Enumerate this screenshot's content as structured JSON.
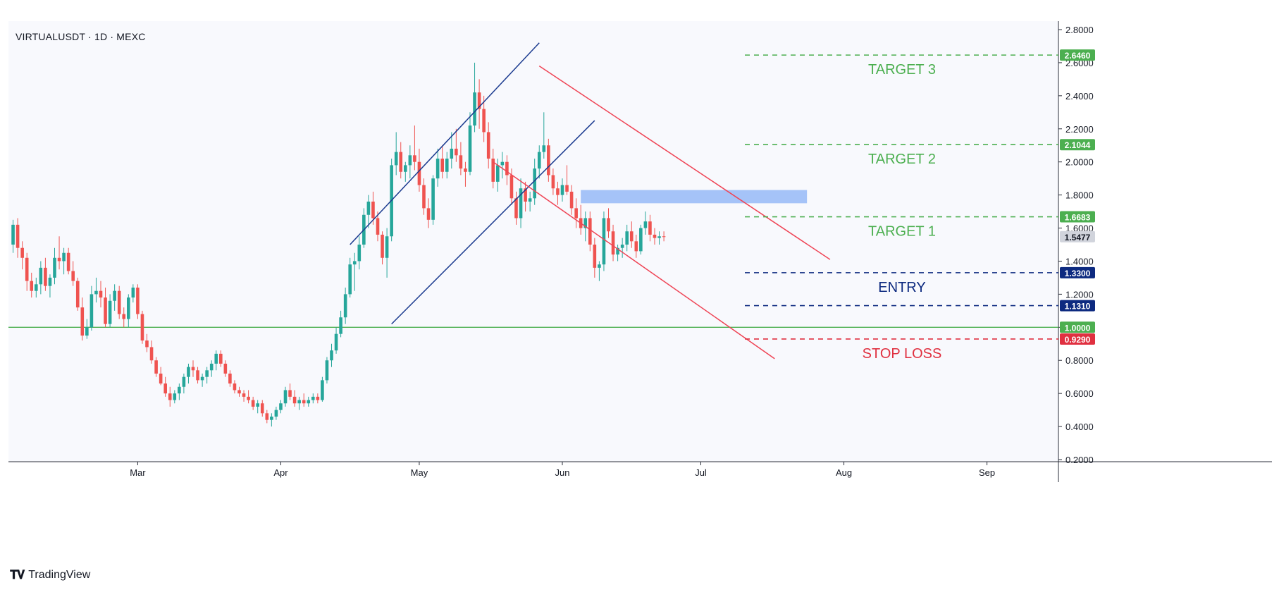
{
  "header": {
    "symbol": "VIRTUALUSDT · 1D · MEXC"
  },
  "branding": {
    "logo_icon": "tradingview-logo-icon",
    "name": "TradingView"
  },
  "colors": {
    "up": "#26a69a",
    "down": "#ef5350",
    "channel": "#1a3a8f",
    "wedge": "#ef4455",
    "target": "#4caf50",
    "entry": "#0d2a80",
    "stop": "#e03040",
    "zone": "#8ab0f5",
    "support": "#4caf50",
    "last": "#d1d4dc"
  },
  "chart_data": {
    "type": "candlestick",
    "title": "",
    "x_ticks": [
      "Mar",
      "Apr",
      "May",
      "Jun",
      "Jul",
      "Aug",
      "Sep"
    ],
    "y_ticks": [
      "2.8000",
      "2.6000",
      "2.4000",
      "2.2000",
      "2.0000",
      "1.8000",
      "1.6000",
      "1.4000",
      "1.2000",
      "1.0000",
      "0.8000",
      "0.6000",
      "0.4000",
      "0.2000"
    ],
    "ylim": [
      0.2,
      2.8
    ],
    "dates": [
      "02-01",
      "09-21"
    ],
    "ohlc_seed": [
      [
        1.5,
        1.65,
        1.45,
        1.62
      ],
      [
        1.62,
        1.66,
        1.42,
        1.48
      ],
      [
        1.48,
        1.52,
        1.35,
        1.42
      ],
      [
        1.42,
        1.45,
        1.22,
        1.28
      ],
      [
        1.28,
        1.33,
        1.18,
        1.22
      ],
      [
        1.22,
        1.3,
        1.18,
        1.26
      ],
      [
        1.26,
        1.4,
        1.2,
        1.36
      ],
      [
        1.36,
        1.42,
        1.22,
        1.25
      ],
      [
        1.25,
        1.32,
        1.18,
        1.3
      ],
      [
        1.3,
        1.48,
        1.26,
        1.42
      ],
      [
        1.42,
        1.55,
        1.35,
        1.4
      ],
      [
        1.4,
        1.48,
        1.32,
        1.45
      ],
      [
        1.45,
        1.48,
        1.32,
        1.34
      ],
      [
        1.34,
        1.4,
        1.25,
        1.28
      ],
      [
        1.28,
        1.3,
        1.1,
        1.12
      ],
      [
        1.12,
        1.18,
        0.92,
        0.95
      ],
      [
        0.95,
        1.05,
        0.93,
        1.0
      ],
      [
        1.0,
        1.25,
        0.98,
        1.2
      ],
      [
        1.2,
        1.3,
        1.15,
        1.22
      ],
      [
        1.22,
        1.28,
        1.12,
        1.18
      ],
      [
        1.18,
        1.24,
        1.0,
        1.02
      ],
      [
        1.02,
        1.2,
        1.0,
        1.16
      ],
      [
        1.16,
        1.26,
        1.1,
        1.22
      ],
      [
        1.22,
        1.25,
        1.05,
        1.08
      ],
      [
        1.08,
        1.12,
        1.0,
        1.05
      ],
      [
        1.05,
        1.2,
        1.0,
        1.18
      ],
      [
        1.18,
        1.26,
        1.15,
        1.24
      ],
      [
        1.24,
        1.26,
        1.05,
        1.08
      ],
      [
        1.08,
        1.1,
        0.9,
        0.92
      ],
      [
        0.92,
        0.96,
        0.85,
        0.88
      ],
      [
        0.88,
        0.92,
        0.78,
        0.8
      ],
      [
        0.8,
        0.82,
        0.7,
        0.72
      ],
      [
        0.72,
        0.76,
        0.65,
        0.66
      ],
      [
        0.66,
        0.7,
        0.58,
        0.6
      ],
      [
        0.6,
        0.64,
        0.52,
        0.56
      ],
      [
        0.56,
        0.62,
        0.54,
        0.6
      ],
      [
        0.6,
        0.66,
        0.56,
        0.64
      ],
      [
        0.64,
        0.72,
        0.6,
        0.7
      ],
      [
        0.7,
        0.78,
        0.66,
        0.76
      ],
      [
        0.76,
        0.8,
        0.7,
        0.74
      ],
      [
        0.74,
        0.76,
        0.66,
        0.68
      ],
      [
        0.68,
        0.72,
        0.64,
        0.7
      ],
      [
        0.7,
        0.76,
        0.66,
        0.74
      ],
      [
        0.74,
        0.8,
        0.7,
        0.78
      ],
      [
        0.78,
        0.86,
        0.74,
        0.84
      ],
      [
        0.84,
        0.86,
        0.76,
        0.78
      ],
      [
        0.78,
        0.8,
        0.7,
        0.72
      ],
      [
        0.72,
        0.74,
        0.64,
        0.66
      ],
      [
        0.66,
        0.68,
        0.6,
        0.62
      ],
      [
        0.62,
        0.64,
        0.58,
        0.6
      ],
      [
        0.6,
        0.62,
        0.55,
        0.58
      ],
      [
        0.58,
        0.62,
        0.54,
        0.56
      ],
      [
        0.56,
        0.58,
        0.5,
        0.52
      ],
      [
        0.52,
        0.56,
        0.48,
        0.54
      ],
      [
        0.54,
        0.56,
        0.46,
        0.48
      ],
      [
        0.48,
        0.5,
        0.42,
        0.44
      ],
      [
        0.44,
        0.48,
        0.4,
        0.46
      ],
      [
        0.46,
        0.52,
        0.44,
        0.5
      ],
      [
        0.5,
        0.56,
        0.48,
        0.54
      ],
      [
        0.54,
        0.64,
        0.52,
        0.62
      ],
      [
        0.62,
        0.66,
        0.56,
        0.58
      ],
      [
        0.58,
        0.62,
        0.52,
        0.54
      ],
      [
        0.54,
        0.58,
        0.5,
        0.56
      ],
      [
        0.56,
        0.6,
        0.52,
        0.54
      ],
      [
        0.54,
        0.58,
        0.52,
        0.56
      ],
      [
        0.56,
        0.6,
        0.54,
        0.58
      ],
      [
        0.58,
        0.6,
        0.54,
        0.56
      ],
      [
        0.56,
        0.7,
        0.55,
        0.68
      ],
      [
        0.68,
        0.82,
        0.66,
        0.8
      ],
      [
        0.8,
        0.9,
        0.76,
        0.86
      ],
      [
        0.86,
        1.0,
        0.84,
        0.96
      ],
      [
        0.96,
        1.1,
        0.94,
        1.06
      ],
      [
        1.06,
        1.24,
        1.02,
        1.2
      ],
      [
        1.2,
        1.42,
        1.18,
        1.38
      ],
      [
        1.38,
        1.45,
        1.22,
        1.4
      ],
      [
        1.4,
        1.55,
        1.35,
        1.5
      ],
      [
        1.5,
        1.72,
        1.48,
        1.68
      ],
      [
        1.68,
        1.8,
        1.6,
        1.76
      ],
      [
        1.76,
        1.82,
        1.62,
        1.66
      ],
      [
        1.66,
        1.7,
        1.52,
        1.56
      ],
      [
        1.56,
        1.58,
        1.38,
        1.42
      ],
      [
        1.42,
        1.6,
        1.3,
        1.55
      ],
      [
        1.55,
        2.02,
        1.52,
        1.98
      ],
      [
        1.98,
        2.18,
        1.92,
        2.06
      ],
      [
        2.06,
        2.12,
        1.9,
        1.94
      ],
      [
        1.94,
        2.0,
        1.88,
        1.98
      ],
      [
        1.98,
        2.1,
        1.9,
        2.04
      ],
      [
        2.04,
        2.22,
        1.95,
        2.0
      ],
      [
        2.0,
        2.08,
        1.82,
        1.86
      ],
      [
        1.86,
        1.9,
        1.68,
        1.72
      ],
      [
        1.72,
        1.78,
        1.6,
        1.65
      ],
      [
        1.65,
        1.92,
        1.62,
        1.9
      ],
      [
        1.9,
        2.08,
        1.85,
        2.02
      ],
      [
        2.02,
        2.1,
        1.9,
        1.94
      ],
      [
        1.94,
        2.06,
        1.9,
        2.02
      ],
      [
        2.02,
        2.18,
        1.96,
        2.08
      ],
      [
        2.08,
        2.2,
        2.0,
        2.04
      ],
      [
        2.04,
        2.12,
        1.92,
        1.96
      ],
      [
        1.96,
        2.0,
        1.85,
        1.94
      ],
      [
        1.94,
        2.3,
        1.92,
        2.22
      ],
      [
        2.22,
        2.6,
        2.18,
        2.42
      ],
      [
        2.42,
        2.5,
        2.2,
        2.32
      ],
      [
        2.32,
        2.4,
        2.12,
        2.18
      ],
      [
        2.18,
        2.24,
        1.96,
        2.02
      ],
      [
        2.02,
        2.08,
        1.84,
        1.88
      ],
      [
        1.88,
        2.02,
        1.82,
        1.98
      ],
      [
        1.98,
        2.06,
        1.9,
        2.0
      ],
      [
        2.0,
        2.04,
        1.86,
        1.92
      ],
      [
        1.92,
        1.96,
        1.74,
        1.78
      ],
      [
        1.78,
        1.82,
        1.62,
        1.66
      ],
      [
        1.66,
        1.9,
        1.6,
        1.84
      ],
      [
        1.84,
        1.88,
        1.7,
        1.76
      ],
      [
        1.76,
        1.82,
        1.7,
        1.78
      ],
      [
        1.78,
        2.02,
        1.74,
        1.96
      ],
      [
        1.96,
        2.1,
        1.9,
        2.06
      ],
      [
        2.06,
        2.3,
        2.02,
        2.1
      ],
      [
        2.1,
        2.14,
        1.88,
        1.92
      ],
      [
        1.92,
        1.96,
        1.8,
        1.84
      ],
      [
        1.84,
        1.88,
        1.74,
        1.8
      ],
      [
        1.8,
        1.9,
        1.76,
        1.86
      ],
      [
        1.86,
        1.98,
        1.8,
        1.82
      ],
      [
        1.82,
        1.86,
        1.68,
        1.72
      ],
      [
        1.72,
        1.78,
        1.6,
        1.66
      ],
      [
        1.66,
        1.74,
        1.56,
        1.6
      ],
      [
        1.6,
        1.7,
        1.52,
        1.66
      ],
      [
        1.66,
        1.7,
        1.46,
        1.5
      ],
      [
        1.5,
        1.54,
        1.3,
        1.36
      ],
      [
        1.36,
        1.4,
        1.28,
        1.38
      ],
      [
        1.38,
        1.7,
        1.34,
        1.66
      ],
      [
        1.66,
        1.72,
        1.54,
        1.58
      ],
      [
        1.58,
        1.62,
        1.4,
        1.44
      ],
      [
        1.44,
        1.5,
        1.4,
        1.48
      ],
      [
        1.48,
        1.54,
        1.42,
        1.5
      ],
      [
        1.5,
        1.62,
        1.46,
        1.58
      ],
      [
        1.58,
        1.64,
        1.48,
        1.52
      ],
      [
        1.52,
        1.56,
        1.42,
        1.46
      ],
      [
        1.46,
        1.62,
        1.44,
        1.6
      ],
      [
        1.6,
        1.7,
        1.56,
        1.64
      ],
      [
        1.64,
        1.68,
        1.52,
        1.56
      ],
      [
        1.56,
        1.6,
        1.5,
        1.54
      ],
      [
        1.54,
        1.58,
        1.5,
        1.55
      ],
      [
        1.55,
        1.58,
        1.52,
        1.547
      ]
    ],
    "ohlc_start_index": 0,
    "channel_up": [
      {
        "date": "04-16",
        "p": 1.5,
        "date2": "05-27",
        "p2": 2.72
      },
      {
        "date": "04-25",
        "p": 1.02,
        "date2": "06-08",
        "p2": 2.25
      }
    ],
    "wedge_down": [
      {
        "date": "05-27",
        "p": 2.58,
        "date2": "07-29",
        "p2": 1.41
      },
      {
        "date": "05-17",
        "p": 2.0,
        "date2": "07-17",
        "p2": 0.81
      }
    ],
    "zone": {
      "date": "06-05",
      "date2": "07-24",
      "p_low": 1.75,
      "p_high": 1.83
    },
    "levels": [
      {
        "name": "TARGET 3",
        "value": 2.646,
        "label": "2.6460",
        "style": "target",
        "text": "TARGET 3"
      },
      {
        "name": "TARGET 2",
        "value": 2.1044,
        "label": "2.1044",
        "style": "target",
        "text": "TARGET 2"
      },
      {
        "name": "TARGET 1",
        "value": 1.6683,
        "label": "1.6683",
        "style": "target",
        "text": "TARGET 1"
      },
      {
        "name": "ENTRY",
        "value": 1.33,
        "label": "1.3300",
        "style": "entry",
        "text": "ENTRY"
      },
      {
        "name": "ENTRY-LOW",
        "value": 1.131,
        "label": "1.1310",
        "style": "entry",
        "text": ""
      },
      {
        "name": "STOP LOSS",
        "value": 0.929,
        "label": "0.9290",
        "style": "stop",
        "text": "STOP LOSS"
      }
    ],
    "support_line": {
      "value": 1.0,
      "label": "1.0000"
    },
    "last_price": {
      "value": 1.5477,
      "label": "1.5477"
    }
  }
}
